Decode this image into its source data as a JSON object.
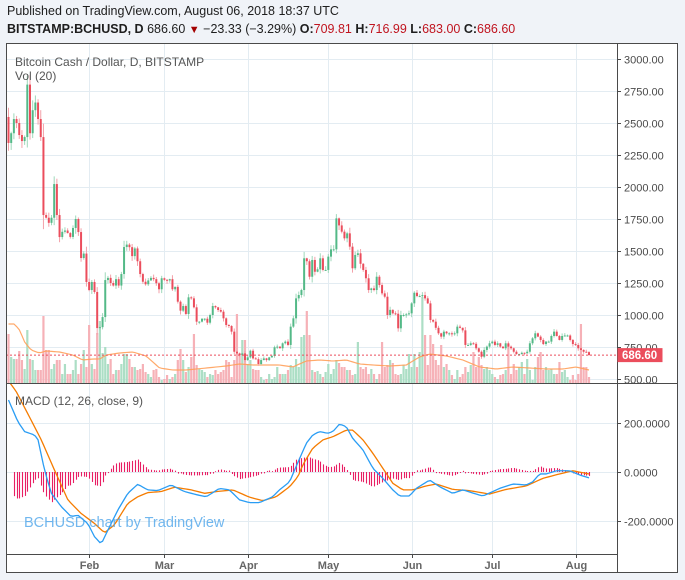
{
  "header": {
    "published": "Published on TradingView.com, August 06, 2018 18:37 UTC",
    "symbol": "BITSTAMP:BCHUSD, D",
    "last_price": "686.60",
    "change_icon": {
      "name": "triangle-down-icon",
      "glyph": "▼"
    },
    "change": "−23.33 (−3.29%)",
    "ohlc": [
      {
        "label": "O:",
        "value": "709.81"
      },
      {
        "label": "H:",
        "value": "716.99"
      },
      {
        "label": "L:",
        "value": "683.00"
      },
      {
        "label": "C:",
        "value": "686.60"
      }
    ]
  },
  "legend": {
    "main": "Bitcoin Cash / Dollar, D, BITSTAMP",
    "volume": "Vol (20)",
    "macd": "MACD (12, 26, close, 9)"
  },
  "watermark": "BCHUSD chart by TradingView",
  "colors": {
    "up": "#53b987",
    "down": "#eb4d5c",
    "up_wick": "#9fd8bb",
    "down_wick": "#f3a1a9",
    "up_volume": "#acdec5",
    "down_volume": "#f6b1b7",
    "vol_ma": "#ffa05a",
    "macd": "#2a9df4",
    "signal": "#f57c00",
    "histogram": "#e91e63",
    "grid": "#e3ecf2",
    "axis": "#4a4a4a",
    "axis_text": "#4a4a4a",
    "price_label": "#eb4d5c",
    "frame_bg": "#ffffff"
  },
  "chart_data": {
    "type": "candlestick",
    "title": "Bitcoin Cash / Dollar, D, BITSTAMP",
    "symbol": "BITSTAMP:BCHUSD",
    "interval": "D",
    "x_ticks": [
      {
        "index": 30,
        "label": "Feb"
      },
      {
        "index": 58,
        "label": "Mar"
      },
      {
        "index": 89,
        "label": "Apr"
      },
      {
        "index": 119,
        "label": "May"
      },
      {
        "index": 150,
        "label": "Jun"
      },
      {
        "index": 180,
        "label": "Jul"
      },
      {
        "index": 211,
        "label": "Aug"
      }
    ],
    "price_axis": {
      "range": [
        500,
        3000
      ],
      "ticks": [
        {
          "value": 3000,
          "label": "3000.00"
        },
        {
          "value": 2750,
          "label": "2750.00"
        },
        {
          "value": 2500,
          "label": "2500.00"
        },
        {
          "value": 2250,
          "label": "2250.00"
        },
        {
          "value": 2000,
          "label": "2000.00"
        },
        {
          "value": 1750,
          "label": "1750.00"
        },
        {
          "value": 1500,
          "label": "1500.00"
        },
        {
          "value": 1250,
          "label": "1250.00"
        },
        {
          "value": 1000,
          "label": "1000.00"
        },
        {
          "value": 750,
          "label": "750.00"
        },
        {
          "value": 500,
          "label": "500.00"
        }
      ]
    },
    "current_price": 686.6,
    "current_price_label": "686.60",
    "first_open": 2547,
    "last_candle": {
      "open": 709.81,
      "high": 716.99,
      "low": 683.0,
      "close": 686.6
    },
    "close": [
      2344,
      2420,
      2531,
      2500,
      2406,
      2359,
      2390,
      2800,
      2420,
      2600,
      2660,
      2531,
      2390,
      1781,
      1760,
      1720,
      1760,
      2023,
      1781,
      1609,
      1650,
      1660,
      1640,
      1610,
      1680,
      1750,
      1648,
      1445,
      1480,
      1258,
      1195,
      1258,
      1180,
      898,
      905,
      984,
      1273,
      1290,
      1250,
      1230,
      1280,
      1230,
      1320,
      1531,
      1550,
      1530,
      1460,
      1520,
      1420,
      1320,
      1260,
      1240,
      1270,
      1290,
      1280,
      1248,
      1201,
      1287,
      1275,
      1270,
      1280,
      1201,
      1220,
      1104,
      1034,
      1070,
      1008,
      1138,
      1130,
      1060,
      948,
      948,
      971,
      971,
      940,
      1000,
      1070,
      1060,
      1039,
      1026,
      974,
      922,
      914,
      870,
      713,
      700,
      687,
      700,
      648,
      669,
      721,
      661,
      655,
      617,
      648,
      661,
      648,
      669,
      680,
      748,
      753,
      740,
      779,
      792,
      766,
      909,
      974,
      1130,
      1156,
      1195,
      1443,
      1420,
      1299,
      1430,
      1338,
      1357,
      1443,
      1352,
      1352,
      1456,
      1513,
      1513,
      1755,
      1700,
      1651,
      1599,
      1638,
      1534,
      1365,
      1469,
      1482,
      1400,
      1352,
      1287,
      1195,
      1208,
      1195,
      1299,
      1234,
      1169,
      1143,
      1000,
      1040,
      1013,
      1010,
      896,
      1000,
      1000,
      1005,
      1013,
      1091,
      1174,
      1148,
      1148,
      1155,
      1130,
      1091,
      961,
      948,
      900,
      857,
      831,
      870,
      857,
      857,
      850,
      857,
      909,
      900,
      880,
      766,
      766,
      779,
      775,
      740,
      713,
      674,
      727,
      753,
      779,
      792,
      766,
      779,
      753,
      740,
      779,
      753,
      740,
      713,
      695,
      695,
      705,
      700,
      713,
      779,
      818,
      857,
      831,
      805,
      773,
      792,
      792,
      836,
      870,
      836,
      805,
      836,
      840,
      840,
      805,
      773,
      766,
      740,
      727,
      713,
      709.81,
      686.6
    ],
    "volume": {
      "name": "Vol (20)",
      "values_rel": [
        49,
        26,
        24,
        24,
        32,
        23,
        14,
        53,
        24,
        23,
        13,
        13,
        13,
        67,
        33,
        33,
        14,
        19,
        23,
        23,
        9,
        19,
        9,
        9,
        13,
        23,
        9,
        19,
        33,
        16,
        58,
        19,
        14,
        50,
        62,
        30,
        36,
        19,
        24,
        9,
        13,
        13,
        19,
        29,
        29,
        24,
        16,
        16,
        13,
        14,
        19,
        11,
        9,
        6,
        13,
        14,
        6,
        3,
        4,
        8,
        4,
        6,
        9,
        23,
        34,
        23,
        11,
        16,
        26,
        49,
        18,
        14,
        13,
        11,
        6,
        9,
        8,
        13,
        9,
        11,
        13,
        23,
        21,
        6,
        23,
        69,
        29,
        43,
        43,
        19,
        23,
        14,
        13,
        13,
        6,
        3,
        4,
        9,
        4,
        6,
        16,
        9,
        9,
        9,
        13,
        18,
        16,
        24,
        16,
        46,
        48,
        72,
        48,
        13,
        11,
        12,
        9,
        6,
        11,
        19,
        9,
        14,
        23,
        20,
        16,
        16,
        13,
        13,
        8,
        9,
        41,
        16,
        14,
        16,
        9,
        14,
        9,
        4,
        9,
        41,
        16,
        18,
        23,
        20,
        9,
        8,
        9,
        18,
        14,
        29,
        16,
        29,
        16,
        31,
        86,
        48,
        18,
        48,
        39,
        23,
        18,
        38,
        16,
        19,
        13,
        8,
        4,
        13,
        6,
        9,
        16,
        11,
        18,
        31,
        16,
        26,
        18,
        14,
        16,
        13,
        9,
        6,
        4,
        8,
        9,
        13,
        39,
        9,
        19,
        13,
        16,
        21,
        9,
        24,
        13,
        3,
        16,
        26,
        31,
        13,
        16,
        13,
        14,
        9,
        9,
        21,
        11,
        13,
        6,
        3,
        8,
        3,
        9,
        59,
        16,
        16,
        6
      ],
      "ma_period": 20,
      "ma_rel": [
        [
          0,
          59
        ],
        [
          2.2,
          59
        ],
        [
          4.1,
          53
        ],
        [
          6,
          41
        ],
        [
          8.4,
          33
        ],
        [
          11.5,
          30
        ],
        [
          14,
          32
        ],
        [
          19,
          31
        ],
        [
          23.9,
          28
        ],
        [
          27.6,
          23
        ],
        [
          31.4,
          24
        ],
        [
          33.9,
          24
        ],
        [
          36.4,
          28
        ],
        [
          41.3,
          30
        ],
        [
          46.3,
          31
        ],
        [
          51.2,
          27
        ],
        [
          56.2,
          15
        ],
        [
          61.1,
          13
        ],
        [
          66.1,
          13
        ],
        [
          73.6,
          15
        ],
        [
          81,
          17
        ],
        [
          86,
          19
        ],
        [
          90.9,
          18
        ],
        [
          95.9,
          18
        ],
        [
          100.8,
          18
        ],
        [
          105.8,
          16
        ],
        [
          110.8,
          22
        ],
        [
          115.7,
          23
        ],
        [
          120.7,
          22
        ],
        [
          125.7,
          23
        ],
        [
          130.6,
          19
        ],
        [
          135.6,
          18
        ],
        [
          141.8,
          17
        ],
        [
          148,
          18
        ],
        [
          152.9,
          26
        ],
        [
          156.7,
          29
        ],
        [
          162.9,
          27
        ],
        [
          169.1,
          23
        ],
        [
          175.3,
          16
        ],
        [
          181.5,
          14
        ],
        [
          187.6,
          16
        ],
        [
          193.9,
          15
        ],
        [
          200.1,
          14
        ],
        [
          206.3,
          14
        ],
        [
          211.2,
          16
        ],
        [
          216,
          13
        ]
      ]
    },
    "macd": {
      "name": "MACD (12, 26, close, 9)",
      "params": {
        "fast": 12,
        "slow": 26,
        "source": "close",
        "signal": 9
      },
      "axis_ticks": [
        {
          "value": 200,
          "label": "200.0000"
        },
        {
          "value": 0,
          "label": "0.0000"
        },
        {
          "value": -200,
          "label": "-200.0000"
        }
      ],
      "macd_line": [
        [
          0,
          294
        ],
        [
          3.5,
          205
        ],
        [
          6,
          165
        ],
        [
          9.7,
          151
        ],
        [
          11,
          131
        ],
        [
          13.4,
          8
        ],
        [
          15.9,
          -86
        ],
        [
          19.6,
          -141
        ],
        [
          23.3,
          -182
        ],
        [
          25.8,
          -176
        ],
        [
          29.5,
          -210
        ],
        [
          32,
          -264
        ],
        [
          34.5,
          -294
        ],
        [
          37,
          -237
        ],
        [
          40.7,
          -155
        ],
        [
          44.4,
          -87
        ],
        [
          48.1,
          -50
        ],
        [
          51.8,
          -73
        ],
        [
          55.5,
          -76
        ],
        [
          60.5,
          -53
        ],
        [
          65.5,
          -80
        ],
        [
          70.5,
          -94
        ],
        [
          73.6,
          -101
        ],
        [
          78.5,
          -67
        ],
        [
          82.2,
          -73
        ],
        [
          86,
          -114
        ],
        [
          89.7,
          -125
        ],
        [
          93.4,
          -125
        ],
        [
          98.3,
          -101
        ],
        [
          100.8,
          -73
        ],
        [
          104.6,
          -40
        ],
        [
          107,
          22
        ],
        [
          110.8,
          117
        ],
        [
          113.2,
          151
        ],
        [
          115.7,
          165
        ],
        [
          118.8,
          158
        ],
        [
          120.7,
          165
        ],
        [
          123.2,
          196
        ],
        [
          125.7,
          185
        ],
        [
          128.1,
          137
        ],
        [
          131.9,
          90
        ],
        [
          135.6,
          15
        ],
        [
          139.3,
          -26
        ],
        [
          143,
          -73
        ],
        [
          145.5,
          -98
        ],
        [
          149.2,
          -98
        ],
        [
          151.7,
          -67
        ],
        [
          156.7,
          -33
        ],
        [
          160.4,
          -60
        ],
        [
          165.3,
          -87
        ],
        [
          169.1,
          -73
        ],
        [
          174,
          -90
        ],
        [
          176.5,
          -98
        ],
        [
          180.2,
          -80
        ],
        [
          182.7,
          -67
        ],
        [
          187.7,
          -49
        ],
        [
          192.6,
          -53
        ],
        [
          195.1,
          -40
        ],
        [
          197.6,
          -8
        ],
        [
          200.1,
          -8
        ],
        [
          203.8,
          5
        ],
        [
          208.8,
          5
        ],
        [
          212.5,
          -12
        ],
        [
          216,
          -24
        ]
      ],
      "signal_line": [
        [
          0,
          372
        ],
        [
          2.9,
          328
        ],
        [
          8.4,
          212
        ],
        [
          12.2,
          131
        ],
        [
          17.1,
          8
        ],
        [
          22.1,
          -114
        ],
        [
          27,
          -169
        ],
        [
          32,
          -210
        ],
        [
          35.7,
          -248
        ],
        [
          39.4,
          -216
        ],
        [
          44.4,
          -128
        ],
        [
          48.1,
          -101
        ],
        [
          51.8,
          -84
        ],
        [
          56.8,
          -80
        ],
        [
          61.8,
          -62
        ],
        [
          68,
          -73
        ],
        [
          73,
          -87
        ],
        [
          77.3,
          -80
        ],
        [
          83.5,
          -73
        ],
        [
          89.7,
          -103
        ],
        [
          94.6,
          -117
        ],
        [
          99.6,
          -101
        ],
        [
          104.6,
          -60
        ],
        [
          107.7,
          -19
        ],
        [
          109.5,
          29
        ],
        [
          113.2,
          97
        ],
        [
          117,
          131
        ],
        [
          120.7,
          144
        ],
        [
          125.7,
          171
        ],
        [
          128.1,
          171
        ],
        [
          131.9,
          131
        ],
        [
          135.6,
          76
        ],
        [
          139.3,
          15
        ],
        [
          143,
          -46
        ],
        [
          146.7,
          -73
        ],
        [
          150.4,
          -73
        ],
        [
          155.4,
          -57
        ],
        [
          159.1,
          -49
        ],
        [
          165.3,
          -71
        ],
        [
          171.5,
          -76
        ],
        [
          179,
          -90
        ],
        [
          185.2,
          -71
        ],
        [
          192.6,
          -57
        ],
        [
          198.8,
          -26
        ],
        [
          205,
          -8
        ],
        [
          210,
          5
        ],
        [
          216,
          -8
        ]
      ]
    }
  }
}
